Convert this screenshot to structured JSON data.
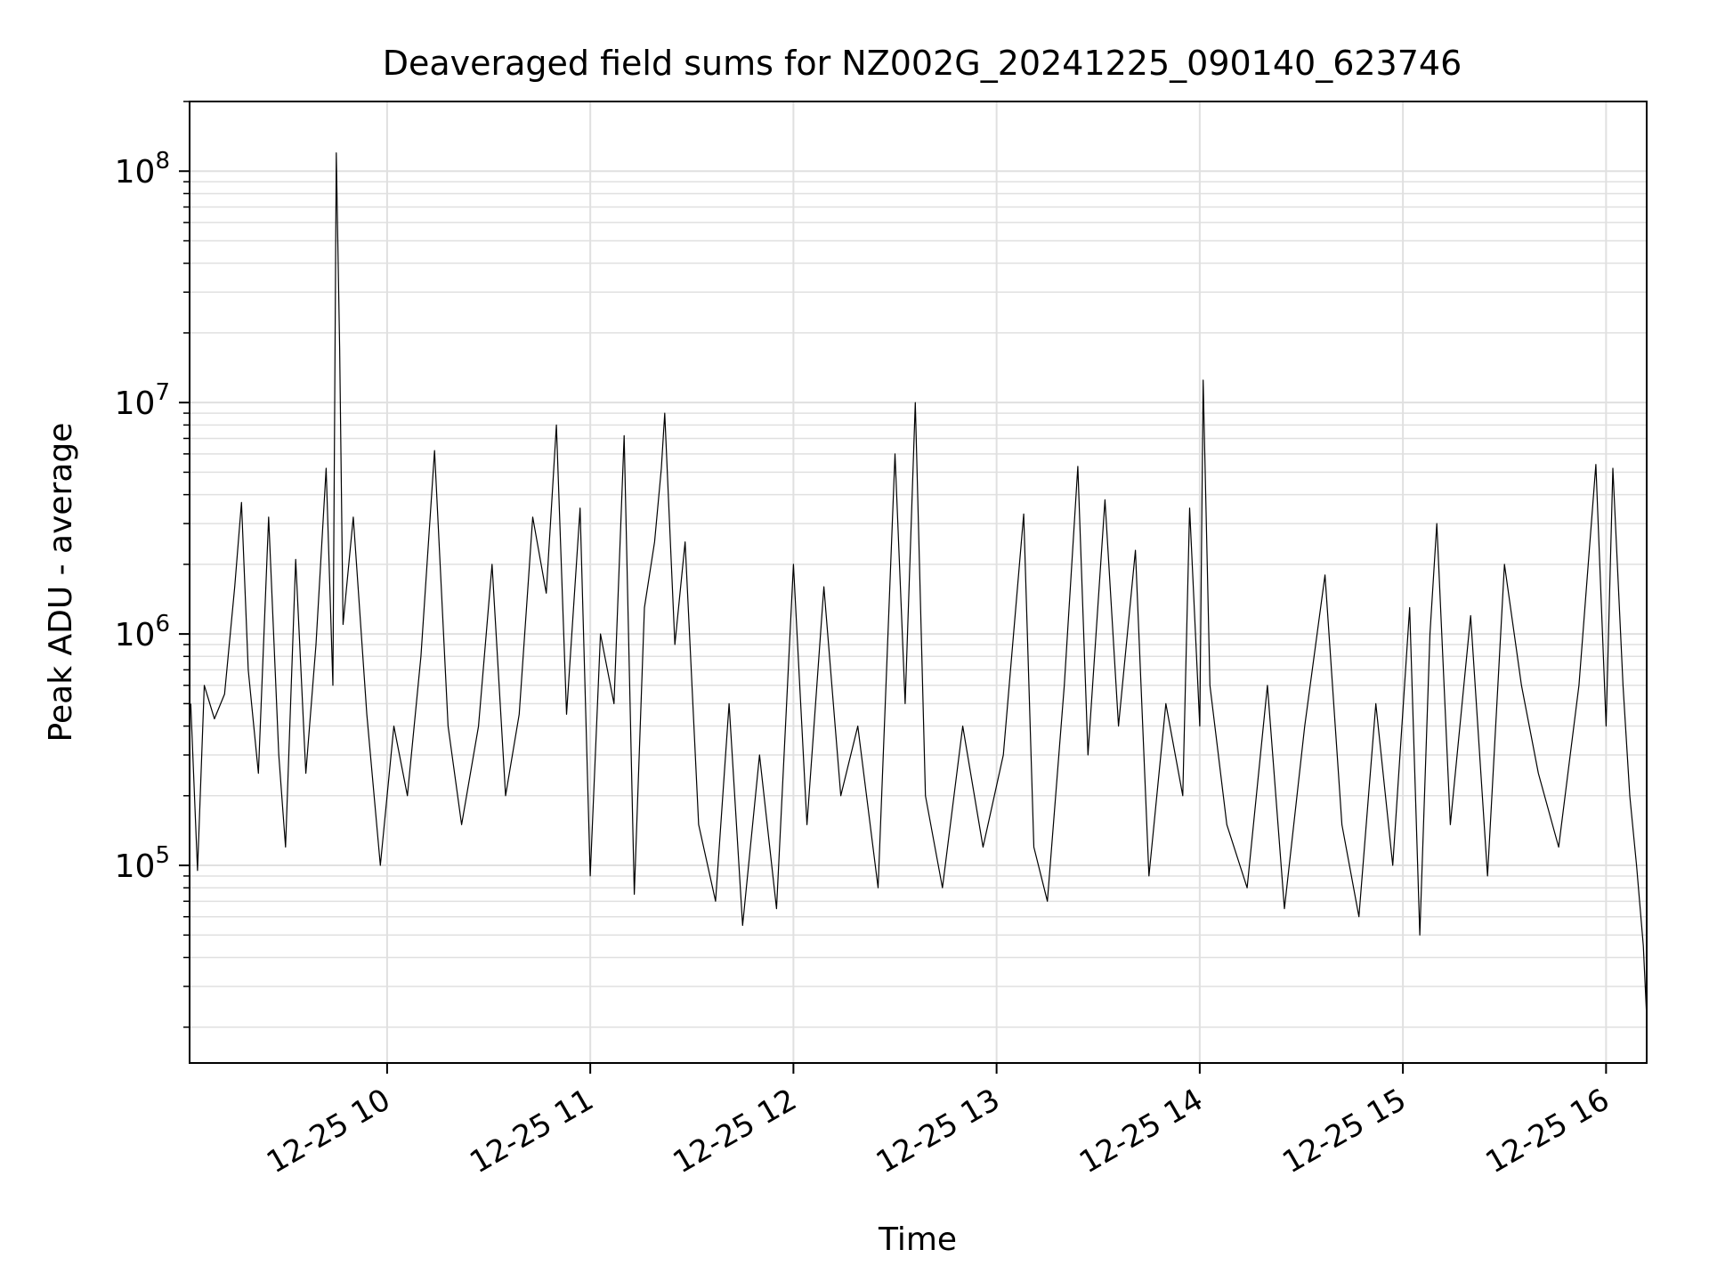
{
  "chart_data": {
    "type": "line",
    "title": "Deaveraged field sums for NZ002G_20241225_090140_623746",
    "xlabel": "Time",
    "ylabel": "Peak ADU - average",
    "x_range": [
      "2024-12-25 09:01:40",
      "2024-12-25 16:12:00"
    ],
    "y_scale": "log",
    "ylim": [
      14000,
      200000000
    ],
    "grid": true,
    "legend": "none",
    "line_color": "#000000",
    "grid_color": "#e0e0e0",
    "x_ticks": [
      {
        "value": "2024-12-25 10:00",
        "label": "12-25 10"
      },
      {
        "value": "2024-12-25 11:00",
        "label": "12-25 11"
      },
      {
        "value": "2024-12-25 12:00",
        "label": "12-25 12"
      },
      {
        "value": "2024-12-25 13:00",
        "label": "12-25 13"
      },
      {
        "value": "2024-12-25 14:00",
        "label": "12-25 14"
      },
      {
        "value": "2024-12-25 15:00",
        "label": "12-25 15"
      },
      {
        "value": "2024-12-25 16:00",
        "label": "12-25 16"
      }
    ],
    "y_ticks": [
      {
        "value": 100000,
        "base": "10",
        "exp": "5"
      },
      {
        "value": 1000000,
        "base": "10",
        "exp": "6"
      },
      {
        "value": 10000000,
        "base": "10",
        "exp": "7"
      },
      {
        "value": 100000000,
        "base": "10",
        "exp": "8"
      }
    ],
    "series": [
      {
        "points": [
          [
            "2024-12-25 09:02",
            500000
          ],
          [
            "2024-12-25 09:04",
            95000
          ],
          [
            "2024-12-25 09:06",
            600000
          ],
          [
            "2024-12-25 09:09",
            430000
          ],
          [
            "2024-12-25 09:12",
            550000
          ],
          [
            "2024-12-25 09:15",
            1600000
          ],
          [
            "2024-12-25 09:17",
            3700000
          ],
          [
            "2024-12-25 09:19",
            700000
          ],
          [
            "2024-12-25 09:22",
            250000
          ],
          [
            "2024-12-25 09:25",
            3200000
          ],
          [
            "2024-12-25 09:28",
            300000
          ],
          [
            "2024-12-25 09:30",
            120000
          ],
          [
            "2024-12-25 09:33",
            2100000
          ],
          [
            "2024-12-25 09:36",
            250000
          ],
          [
            "2024-12-25 09:39",
            900000
          ],
          [
            "2024-12-25 09:42",
            5200000
          ],
          [
            "2024-12-25 09:44",
            600000
          ],
          [
            "2024-12-25 09:45",
            120000000
          ],
          [
            "2024-12-25 09:46",
            17000000
          ],
          [
            "2024-12-25 09:47",
            1100000
          ],
          [
            "2024-12-25 09:50",
            3200000
          ],
          [
            "2024-12-25 09:54",
            450000
          ],
          [
            "2024-12-25 09:58",
            100000
          ],
          [
            "2024-12-25 10:02",
            400000
          ],
          [
            "2024-12-25 10:06",
            200000
          ],
          [
            "2024-12-25 10:10",
            800000
          ],
          [
            "2024-12-25 10:14",
            6200000
          ],
          [
            "2024-12-25 10:18",
            400000
          ],
          [
            "2024-12-25 10:22",
            150000
          ],
          [
            "2024-12-25 10:27",
            400000
          ],
          [
            "2024-12-25 10:31",
            2000000
          ],
          [
            "2024-12-25 10:35",
            200000
          ],
          [
            "2024-12-25 10:39",
            450000
          ],
          [
            "2024-12-25 10:43",
            3200000
          ],
          [
            "2024-12-25 10:47",
            1500000
          ],
          [
            "2024-12-25 10:50",
            8000000
          ],
          [
            "2024-12-25 10:53",
            450000
          ],
          [
            "2024-12-25 10:57",
            3500000
          ],
          [
            "2024-12-25 11:00",
            90000
          ],
          [
            "2024-12-25 11:03",
            1000000
          ],
          [
            "2024-12-25 11:07",
            500000
          ],
          [
            "2024-12-25 11:10",
            7200000
          ],
          [
            "2024-12-25 11:13",
            75000
          ],
          [
            "2024-12-25 11:16",
            1300000
          ],
          [
            "2024-12-25 11:19",
            2500000
          ],
          [
            "2024-12-25 11:21",
            5200000
          ],
          [
            "2024-12-25 11:22",
            9000000
          ],
          [
            "2024-12-25 11:25",
            900000
          ],
          [
            "2024-12-25 11:28",
            2500000
          ],
          [
            "2024-12-25 11:32",
            150000
          ],
          [
            "2024-12-25 11:37",
            70000
          ],
          [
            "2024-12-25 11:41",
            500000
          ],
          [
            "2024-12-25 11:45",
            55000
          ],
          [
            "2024-12-25 11:50",
            300000
          ],
          [
            "2024-12-25 11:55",
            65000
          ],
          [
            "2024-12-25 12:00",
            2000000
          ],
          [
            "2024-12-25 12:04",
            150000
          ],
          [
            "2024-12-25 12:09",
            1600000
          ],
          [
            "2024-12-25 12:14",
            200000
          ],
          [
            "2024-12-25 12:19",
            400000
          ],
          [
            "2024-12-25 12:25",
            80000
          ],
          [
            "2024-12-25 12:30",
            6000000
          ],
          [
            "2024-12-25 12:33",
            500000
          ],
          [
            "2024-12-25 12:36",
            10000000
          ],
          [
            "2024-12-25 12:39",
            200000
          ],
          [
            "2024-12-25 12:44",
            80000
          ],
          [
            "2024-12-25 12:50",
            400000
          ],
          [
            "2024-12-25 12:56",
            120000
          ],
          [
            "2024-12-25 13:02",
            300000
          ],
          [
            "2024-12-25 13:08",
            3300000
          ],
          [
            "2024-12-25 13:11",
            120000
          ],
          [
            "2024-12-25 13:15",
            70000
          ],
          [
            "2024-12-25 13:20",
            600000
          ],
          [
            "2024-12-25 13:24",
            5300000
          ],
          [
            "2024-12-25 13:27",
            300000
          ],
          [
            "2024-12-25 13:32",
            3800000
          ],
          [
            "2024-12-25 13:36",
            400000
          ],
          [
            "2024-12-25 13:41",
            2300000
          ],
          [
            "2024-12-25 13:45",
            90000
          ],
          [
            "2024-12-25 13:50",
            500000
          ],
          [
            "2024-12-25 13:55",
            200000
          ],
          [
            "2024-12-25 13:57",
            3500000
          ],
          [
            "2024-12-25 14:00",
            400000
          ],
          [
            "2024-12-25 14:01",
            12500000
          ],
          [
            "2024-12-25 14:03",
            600000
          ],
          [
            "2024-12-25 14:08",
            150000
          ],
          [
            "2024-12-25 14:14",
            80000
          ],
          [
            "2024-12-25 14:20",
            600000
          ],
          [
            "2024-12-25 14:25",
            65000
          ],
          [
            "2024-12-25 14:31",
            400000
          ],
          [
            "2024-12-25 14:37",
            1800000
          ],
          [
            "2024-12-25 14:42",
            150000
          ],
          [
            "2024-12-25 14:47",
            60000
          ],
          [
            "2024-12-25 14:52",
            500000
          ],
          [
            "2024-12-25 14:57",
            100000
          ],
          [
            "2024-12-25 15:02",
            1300000
          ],
          [
            "2024-12-25 15:05",
            50000
          ],
          [
            "2024-12-25 15:08",
            1000000
          ],
          [
            "2024-12-25 15:10",
            3000000
          ],
          [
            "2024-12-25 15:14",
            150000
          ],
          [
            "2024-12-25 15:20",
            1200000
          ],
          [
            "2024-12-25 15:25",
            90000
          ],
          [
            "2024-12-25 15:30",
            2000000
          ],
          [
            "2024-12-25 15:35",
            600000
          ],
          [
            "2024-12-25 15:40",
            250000
          ],
          [
            "2024-12-25 15:46",
            120000
          ],
          [
            "2024-12-25 15:52",
            600000
          ],
          [
            "2024-12-25 15:57",
            5400000
          ],
          [
            "2024-12-25 16:00",
            400000
          ],
          [
            "2024-12-25 16:02",
            5200000
          ],
          [
            "2024-12-25 16:05",
            600000
          ],
          [
            "2024-12-25 16:07",
            200000
          ],
          [
            "2024-12-25 16:09",
            100000
          ],
          [
            "2024-12-25 16:11",
            45000
          ],
          [
            "2024-12-25 16:12",
            22000
          ]
        ]
      }
    ]
  }
}
